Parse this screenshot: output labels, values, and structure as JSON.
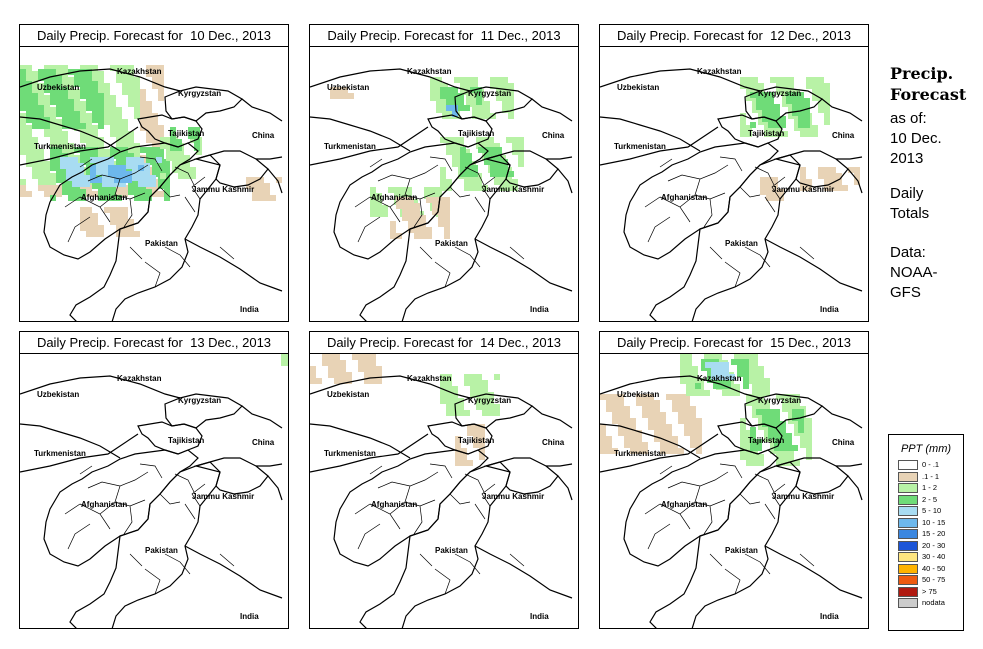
{
  "panels": [
    {
      "title": "Daily Precip. Forecast for  10 Dec., 2013"
    },
    {
      "title": "Daily Precip. Forecast for  11 Dec., 2013"
    },
    {
      "title": "Daily Precip. Forecast for  12 Dec., 2013"
    },
    {
      "title": "Daily Precip. Forecast for  13 Dec., 2013"
    },
    {
      "title": "Daily Precip. Forecast for  14 Dec., 2013"
    },
    {
      "title": "Daily Precip. Forecast for  15 Dec., 2013"
    }
  ],
  "map_labels": {
    "kazakhstan": "Kazakhstan",
    "uzbekistan": "Uzbekistan",
    "kyrgyzstan": "Kyrgyzstan",
    "tajikistan": "Tajikistan",
    "turkmenistan": "Turkmenistan",
    "china": "China",
    "afghanistan": "Afghanistan",
    "jammu": "Jammu Kashmir",
    "pakistan": "Pakistan",
    "india": "India"
  },
  "sidebar": {
    "heading_line1": "Precip.",
    "heading_line2": "Forecast",
    "asof_line1": "as of:",
    "asof_line2": "10 Dec.",
    "asof_line3": "2013",
    "daily_line1": "Daily",
    "daily_line2": "Totals",
    "data_line1": "Data:",
    "data_line2": "NOAA-",
    "data_line3": "GFS"
  },
  "legend": {
    "title": "PPT (mm)",
    "rows": [
      {
        "label": "0 - .1",
        "color": "#ffffff"
      },
      {
        "label": ".1 - 1",
        "color": "#e8d3b6"
      },
      {
        "label": "1 - 2",
        "color": "#b8f2a6"
      },
      {
        "label": "2 - 5",
        "color": "#6fdc78"
      },
      {
        "label": "5 - 10",
        "color": "#a8dcf2"
      },
      {
        "label": "10 - 15",
        "color": "#6db8ec"
      },
      {
        "label": "15 - 20",
        "color": "#3b87e0"
      },
      {
        "label": "20 - 30",
        "color": "#1c55d8"
      },
      {
        "label": "30 - 40",
        "color": "#ffe680"
      },
      {
        "label": "40 - 50",
        "color": "#ffb300"
      },
      {
        "label": "50 - 75",
        "color": "#ee5a10"
      },
      {
        "label": "> 75",
        "color": "#b01a10"
      },
      {
        "label": "nodata",
        "color": "#cccccc"
      }
    ]
  }
}
